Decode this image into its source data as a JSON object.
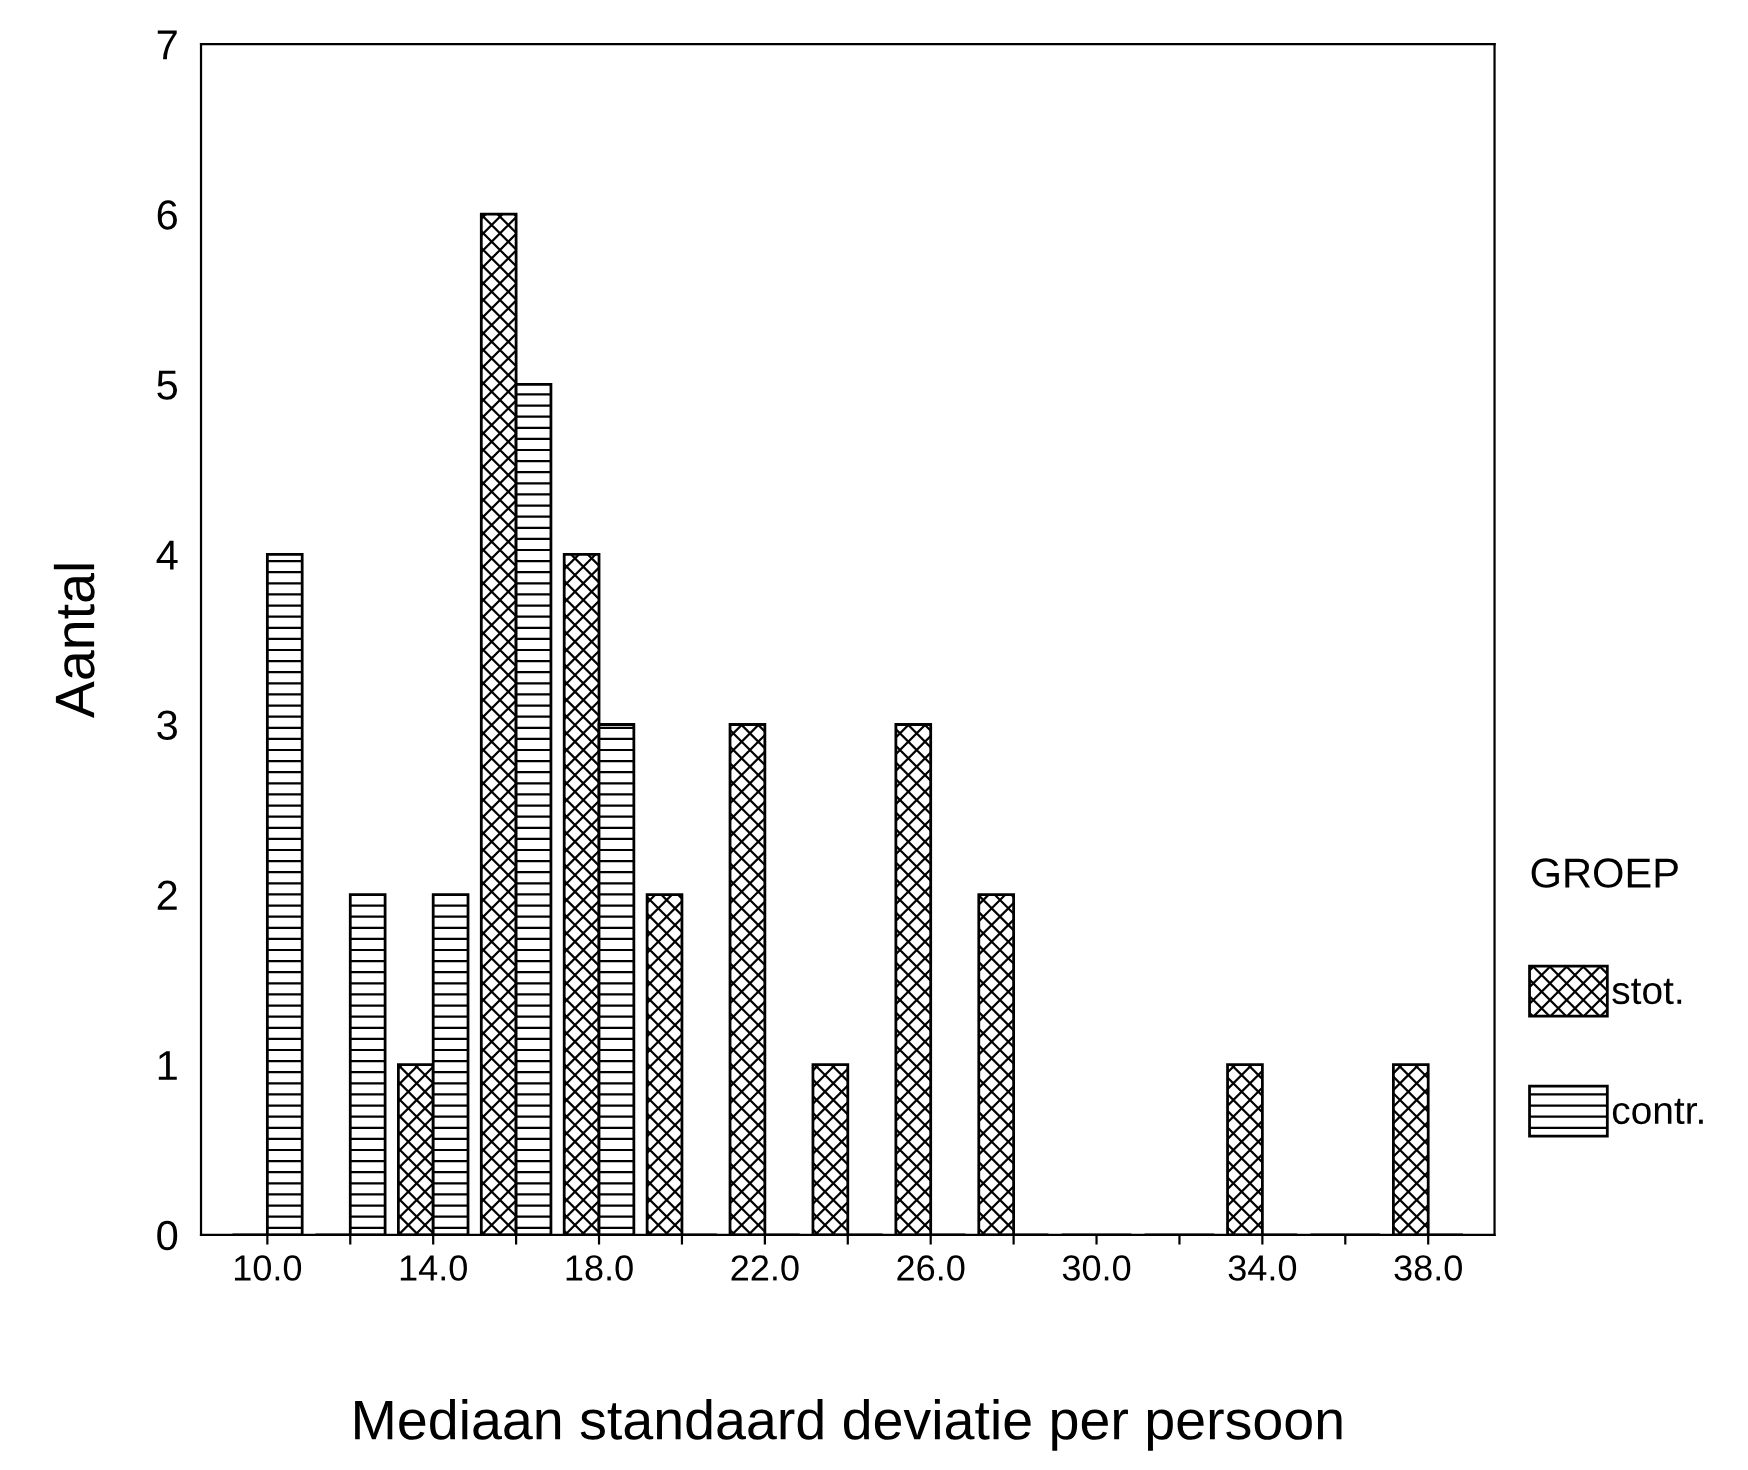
{
  "chart_data": {
    "type": "bar",
    "xlabel": "Mediaan standaard deviatie per persoon",
    "ylabel": "Aantal",
    "legend_title": "GROEP",
    "categories": [
      "10.0",
      null,
      "14.0",
      null,
      "18.0",
      null,
      "22.0",
      null,
      "26.0",
      null,
      "30.0",
      null,
      "34.0",
      null,
      "38.0"
    ],
    "series": [
      {
        "name": "stot.",
        "color": "#000000",
        "values": [
          0,
          0,
          1,
          6,
          4,
          2,
          3,
          1,
          3,
          2,
          0,
          0,
          1,
          0,
          1
        ]
      },
      {
        "name": "contr.",
        "color": "#000000",
        "values": [
          4,
          2,
          2,
          5,
          3,
          0,
          0,
          0,
          0,
          0,
          0,
          0,
          0,
          0,
          0
        ]
      }
    ],
    "ylim": [
      0,
      7
    ],
    "yticks": [
      0,
      1,
      2,
      3,
      4,
      5,
      6,
      7
    ],
    "grid": false,
    "legend": "right"
  }
}
